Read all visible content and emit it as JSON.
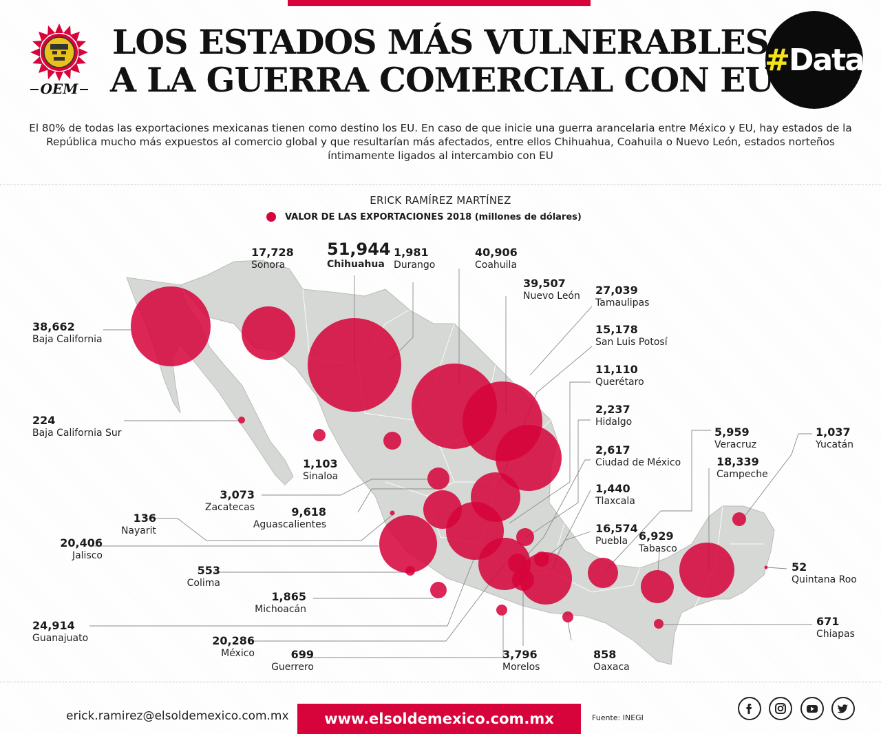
{
  "header": {
    "title_line1": "LOS ESTADOS MÁS VULNERABLES",
    "title_line2": "A LA GUERRA COMERCIAL CON EU",
    "badge_hash": "#",
    "badge_word": "Data",
    "logo_text": "OEM"
  },
  "intro": "El 80% de todas las exportaciones mexicanas tienen como destino los EU. En caso de que inicie una guerra arancelaria entre México y EU, hay estados de la República mucho más expuestos al comercio global y que resultarían más afectados, entre ellos Chihuahua, Coahuila o Nuevo León, estados norteños íntimamente ligados al intercambio con EU",
  "author": "ERICK RAMÍREZ MARTÍNEZ",
  "legend": "VALOR DE LAS EXPORTACIONES 2018 (millones de dólares)",
  "colors": {
    "accent": "#d6043a",
    "bubble": "#d6043a",
    "land": "#d5d8d4"
  },
  "states": [
    {
      "name": "Sonora",
      "value": "17,728"
    },
    {
      "name": "Chihuahua",
      "value": "51,944"
    },
    {
      "name": "Durango",
      "value": "1,981"
    },
    {
      "name": "Coahuila",
      "value": "40,906"
    },
    {
      "name": "Nuevo León",
      "value": "39,507"
    },
    {
      "name": "Tamaulipas",
      "value": "27,039"
    },
    {
      "name": "San Luis Potosí",
      "value": "15,178"
    },
    {
      "name": "Querétaro",
      "value": "11,110"
    },
    {
      "name": "Hidalgo",
      "value": "2,237"
    },
    {
      "name": "Ciudad de México",
      "value": "2,617"
    },
    {
      "name": "Tlaxcala",
      "value": "1,440"
    },
    {
      "name": "Puebla",
      "value": "16,574"
    },
    {
      "name": "Veracruz",
      "value": "5,959"
    },
    {
      "name": "Campeche",
      "value": "18,339"
    },
    {
      "name": "Yucatán",
      "value": "1,037"
    },
    {
      "name": "Tabasco",
      "value": "6,929"
    },
    {
      "name": "Quintana Roo",
      "value": "52"
    },
    {
      "name": "Chiapas",
      "value": "671"
    },
    {
      "name": "Oaxaca",
      "value": "858"
    },
    {
      "name": "Morelos",
      "value": "3,796"
    },
    {
      "name": "Guerrero",
      "value": "699"
    },
    {
      "name": "México",
      "value": "20,286"
    },
    {
      "name": "Guanajuato",
      "value": "24,914"
    },
    {
      "name": "Michoacán",
      "value": "1,865"
    },
    {
      "name": "Colima",
      "value": "553"
    },
    {
      "name": "Jalisco",
      "value": "20,406"
    },
    {
      "name": "Nayarit",
      "value": "136"
    },
    {
      "name": "Aguascalientes",
      "value": "9,618"
    },
    {
      "name": "Zacatecas",
      "value": "3,073"
    },
    {
      "name": "Sinaloa",
      "value": "1,103"
    },
    {
      "name": "Baja California Sur",
      "value": "224"
    },
    {
      "name": "Baja California",
      "value": "38,662"
    }
  ],
  "footer": {
    "email": "erick.ramirez@elsoldemexico.com.mx",
    "website": "www.elsoldemexico.com.mx",
    "source": "Fuente: INEGI",
    "social": [
      "facebook-icon",
      "instagram-icon",
      "youtube-icon",
      "twitter-icon"
    ]
  }
}
